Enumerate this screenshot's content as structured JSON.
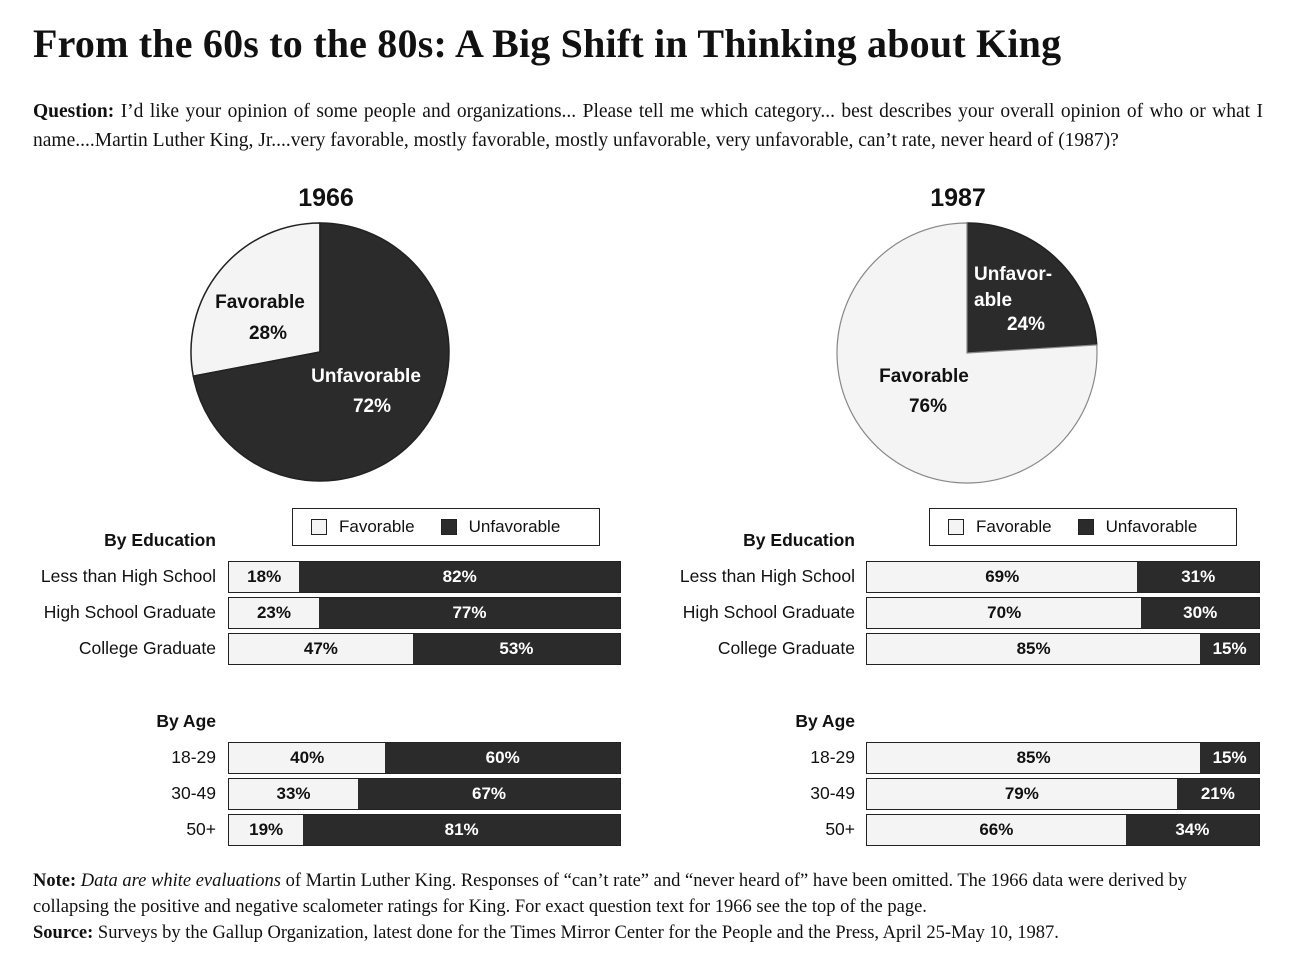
{
  "title": "From the 60s to the 80s: A Big Shift in Thinking about King",
  "question_label": "Question:",
  "question_text": "I’d like your opinion of some people and organizations... Please tell me which category... best describes your overall opinion of who or what I name....Martin Luther King, Jr....very favorable, mostly favorable, mostly unfavorable, very unfavorable, can’t rate, never heard of (1987)?",
  "colors": {
    "favorable": "#f4f4f4",
    "unfavorable": "#2b2b2b",
    "outline": "#222222"
  },
  "legend": {
    "favorable": "Favorable",
    "unfavorable": "Unfavorable"
  },
  "chart_data": [
    {
      "type": "pie",
      "title": "1966",
      "slices": [
        {
          "label": "Favorable",
          "value": 28,
          "display": "28%"
        },
        {
          "label": "Unfavorable",
          "value": 72,
          "display": "72%"
        }
      ]
    },
    {
      "type": "pie",
      "title": "1987",
      "slices": [
        {
          "label": "Unfavor-able",
          "value": 24,
          "display": "24%"
        },
        {
          "label": "Favorable",
          "value": 76,
          "display": "76%"
        }
      ]
    },
    {
      "type": "bar",
      "orientation": "horizontal",
      "stacked": true,
      "year": "1966",
      "title": "By Education",
      "categories": [
        "Less than High School",
        "High School Graduate",
        "College Graduate"
      ],
      "series": [
        {
          "name": "Favorable",
          "values": [
            18,
            23,
            47
          ],
          "labels": [
            "18%",
            "23%",
            "47%"
          ]
        },
        {
          "name": "Unfavorable",
          "values": [
            82,
            77,
            53
          ],
          "labels": [
            "82%",
            "77%",
            "53%"
          ]
        }
      ]
    },
    {
      "type": "bar",
      "orientation": "horizontal",
      "stacked": true,
      "year": "1966",
      "title": "By Age",
      "categories": [
        "18-29",
        "30-49",
        "50+"
      ],
      "series": [
        {
          "name": "Favorable",
          "values": [
            40,
            33,
            19
          ],
          "labels": [
            "40%",
            "33%",
            "19%"
          ]
        },
        {
          "name": "Unfavorable",
          "values": [
            60,
            67,
            81
          ],
          "labels": [
            "60%",
            "67%",
            "81%"
          ]
        }
      ]
    },
    {
      "type": "bar",
      "orientation": "horizontal",
      "stacked": true,
      "year": "1987",
      "title": "By Education",
      "categories": [
        "Less than High School",
        "High School Graduate",
        "College Graduate"
      ],
      "series": [
        {
          "name": "Favorable",
          "values": [
            69,
            70,
            85
          ],
          "labels": [
            "69%",
            "70%",
            "85%"
          ]
        },
        {
          "name": "Unfavorable",
          "values": [
            31,
            30,
            15
          ],
          "labels": [
            "31%",
            "30%",
            "15%"
          ]
        }
      ]
    },
    {
      "type": "bar",
      "orientation": "horizontal",
      "stacked": true,
      "year": "1987",
      "title": "By Age",
      "categories": [
        "18-29",
        "30-49",
        "50+"
      ],
      "series": [
        {
          "name": "Favorable",
          "values": [
            85,
            79,
            66
          ],
          "labels": [
            "85%",
            "79%",
            "66%"
          ]
        },
        {
          "name": "Unfavorable",
          "values": [
            15,
            21,
            34
          ],
          "labels": [
            "15%",
            "21%",
            "34%"
          ]
        }
      ]
    }
  ],
  "note": {
    "note_label": "Note:",
    "note_italic": "Data are white evaluations",
    "note_text": "of Martin Luther King. Responses of “can’t rate” and “never heard of” have been omitted. The 1966 data were derived by collapsing the positive and negative scalometer ratings for King. For exact question text for 1966 see the top of the page.",
    "source_label": "Source:",
    "source_text": "Surveys by the Gallup Organization, latest done for the Times Mirror Center for the People and the Press, April 25-May 10, 1987."
  }
}
